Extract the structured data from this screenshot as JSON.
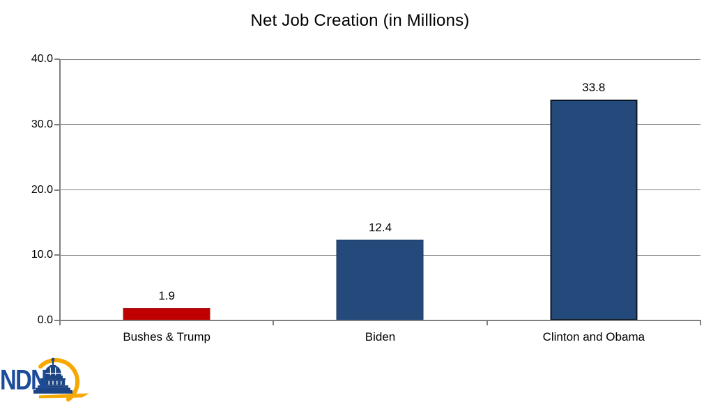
{
  "page": {
    "background": "#FFFFFF"
  },
  "chart_data": {
    "type": "bar",
    "title": "Net Job Creation (in Millions)",
    "categories": [
      "Bushes & Trump",
      "Biden",
      "Clinton and Obama"
    ],
    "values": [
      1.9,
      12.4,
      33.8
    ],
    "data_labels": [
      "1.9",
      "12.4",
      "33.8"
    ],
    "bar_colors": [
      "#C00000",
      "#24497B",
      "#24497B"
    ],
    "bar_border_colors": [
      "#9C1C1C",
      "#17375E",
      "#0B1624"
    ],
    "bar_border_widths": [
      1,
      1,
      2
    ],
    "xlabel": "",
    "ylabel": "",
    "ylim": [
      0,
      40
    ],
    "ytick_labels": [
      "0.0",
      "10.0",
      "20.0",
      "30.0",
      "40.0"
    ],
    "grid": "horizontal",
    "legend": "none",
    "gridline_color": "#7F7F7F",
    "axis_color": "#7F7F7F",
    "text_color": "#000000"
  },
  "logo": {
    "text": "NDN",
    "text_color": "#1C4B9B",
    "accent_color": "#F7A800",
    "capitol_color": "#1E4583",
    "icon": "capitol-dome-icon"
  }
}
